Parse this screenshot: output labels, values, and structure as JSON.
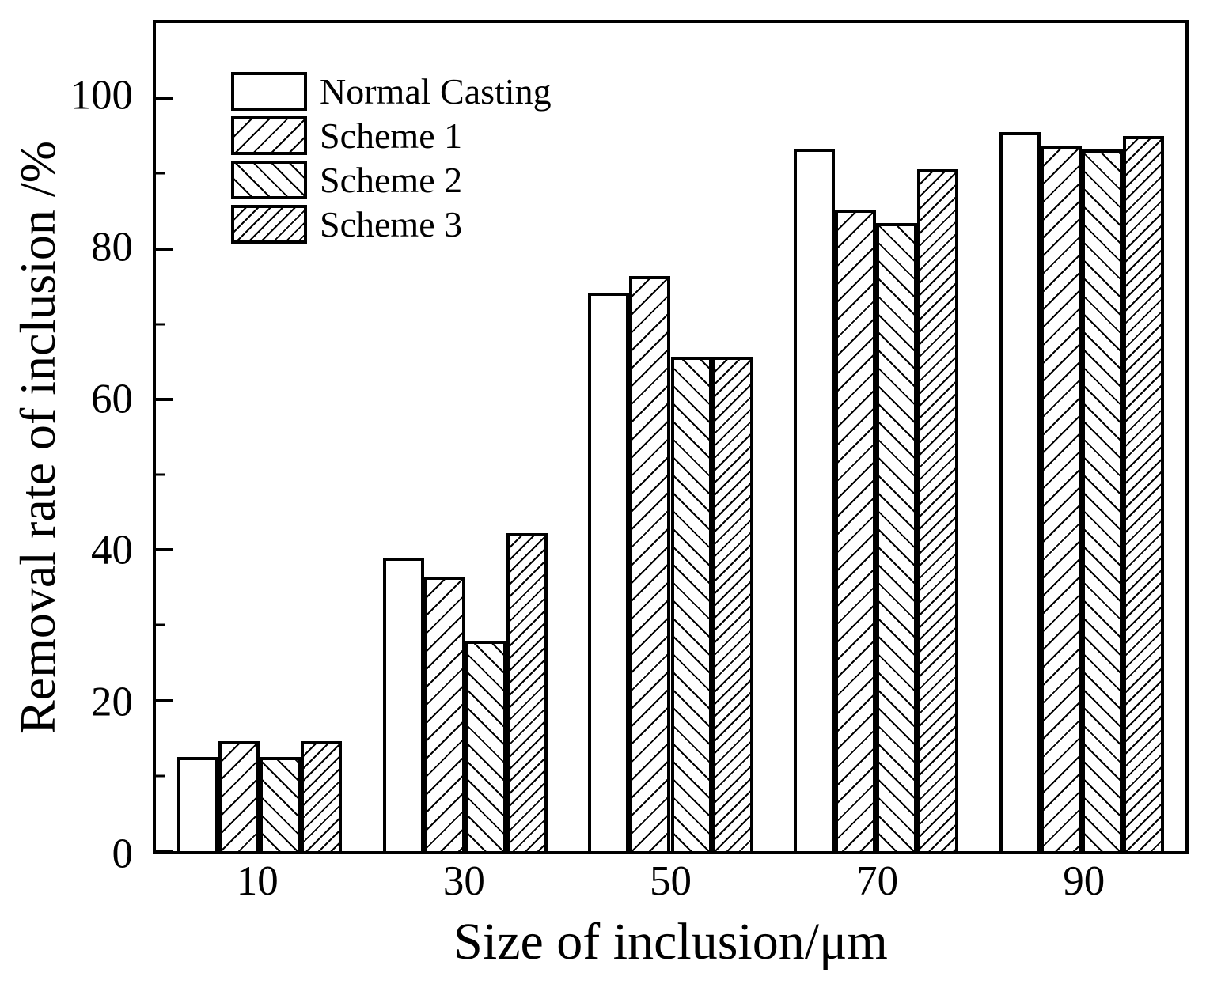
{
  "figure": {
    "background": "#ffffff",
    "line_color": "#000000"
  },
  "chart_data": {
    "type": "bar",
    "title": "",
    "xlabel": "Size of inclusion/μm",
    "ylabel": "Removal rate of inclusion /%",
    "categories": [
      "10",
      "30",
      "50",
      "70",
      "90"
    ],
    "series": [
      {
        "name": "Normal Casting",
        "hatch": "none",
        "values": [
          12.5,
          39.0,
          74.2,
          93.3,
          95.5
        ]
      },
      {
        "name": "Scheme 1",
        "hatch": "forward-diagonal",
        "values": [
          14.6,
          36.5,
          76.4,
          85.2,
          93.7
        ]
      },
      {
        "name": "Scheme 2",
        "hatch": "backward-diagonal",
        "values": [
          12.5,
          28.0,
          65.7,
          83.4,
          93.2
        ]
      },
      {
        "name": "Scheme 3",
        "hatch": "dense-forward-diagonal",
        "values": [
          14.6,
          42.2,
          65.7,
          90.6,
          95.0
        ]
      }
    ],
    "ylim": [
      0,
      110
    ],
    "yticks": [
      0,
      20,
      40,
      60,
      80,
      100
    ],
    "minor_yticks": [
      10,
      30,
      50,
      70,
      90
    ],
    "grid": false,
    "legend_position": "top-left",
    "bar_fill": "#ffffff",
    "bar_edge": "#000000"
  }
}
